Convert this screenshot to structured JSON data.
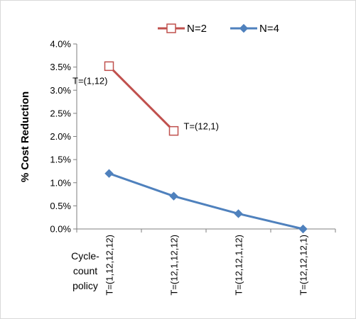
{
  "chart_data": {
    "type": "line",
    "ylabel": "% Cost Reduction",
    "x_axis_side_label": [
      "Cycle-",
      "count",
      "policy"
    ],
    "categories": [
      "T=(1,12,12,12)",
      "T=(12,1,12,12)",
      "T=(12,12,1,12)",
      "T=(12,12,12,1)"
    ],
    "ylim": [
      0,
      4.0
    ],
    "y_ticks": [
      "0.0%",
      "0.5%",
      "1.0%",
      "1.5%",
      "2.0%",
      "2.5%",
      "3.0%",
      "3.5%",
      "4.0%"
    ],
    "grid": false,
    "legend_position": "top",
    "series": [
      {
        "name": "N=2",
        "color": "#C0504D",
        "marker": "open-square",
        "values": [
          3.52,
          2.12,
          null,
          null
        ],
        "point_labels": [
          "T=(1,12)",
          "T=(12,1)",
          null,
          null
        ]
      },
      {
        "name": "N=4",
        "color": "#4F81BD",
        "marker": "filled-diamond",
        "values": [
          1.2,
          0.71,
          0.33,
          0.0
        ],
        "point_labels": [
          null,
          null,
          null,
          null
        ]
      }
    ]
  }
}
